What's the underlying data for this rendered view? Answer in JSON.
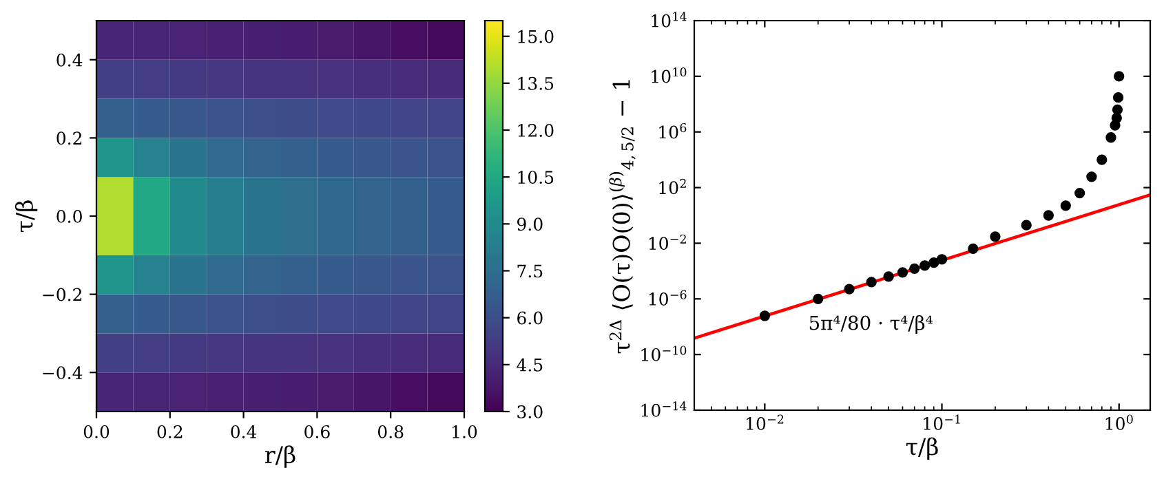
{
  "chart_data": [
    {
      "type": "heatmap",
      "xlabel": "r/β",
      "ylabel": "τ/β",
      "x": [
        0.05,
        0.15,
        0.25,
        0.35,
        0.45,
        0.55,
        0.65,
        0.75,
        0.85,
        0.95
      ],
      "y": [
        0.45,
        0.35,
        0.25,
        0.15,
        0.05,
        -0.05,
        -0.15,
        -0.25,
        -0.35,
        -0.45
      ],
      "cells": [
        [
          4.3,
          4.25,
          4.2,
          4.15,
          4.1,
          4.0,
          3.9,
          3.7,
          3.4,
          3.3
        ],
        [
          5.3,
          5.2,
          5.1,
          5.0,
          4.95,
          4.9,
          4.8,
          4.7,
          4.6,
          4.5
        ],
        [
          6.8,
          6.6,
          6.4,
          6.2,
          6.0,
          5.9,
          5.8,
          5.7,
          5.6,
          5.5
        ],
        [
          9.5,
          8.5,
          7.8,
          7.3,
          7.0,
          6.8,
          6.6,
          6.4,
          6.3,
          6.2
        ],
        [
          14,
          10.5,
          9,
          8.3,
          7.8,
          7.5,
          7.2,
          7.0,
          6.8,
          6.6
        ],
        [
          14,
          10.5,
          9,
          8.3,
          7.8,
          7.5,
          7.2,
          7.0,
          6.8,
          6.6
        ],
        [
          9.5,
          8.5,
          7.8,
          7.3,
          7.0,
          6.8,
          6.6,
          6.4,
          6.3,
          6.2
        ],
        [
          6.8,
          6.6,
          6.4,
          6.2,
          6.0,
          5.9,
          5.8,
          5.7,
          5.6,
          5.5
        ],
        [
          5.3,
          5.2,
          5.1,
          5.0,
          4.95,
          4.9,
          4.8,
          4.7,
          4.6,
          4.5
        ],
        [
          4.3,
          4.25,
          4.2,
          4.15,
          4.1,
          4.0,
          3.9,
          3.7,
          3.4,
          3.3
        ]
      ],
      "xlim": [
        0,
        1
      ],
      "ylim": [
        -0.5,
        0.5
      ],
      "xticks": [
        {
          "value": 0,
          "label": "0.0"
        },
        {
          "value": 0.2,
          "label": "0.2"
        },
        {
          "value": 0.4,
          "label": "0.4"
        },
        {
          "value": 0.6,
          "label": "0.6"
        },
        {
          "value": 0.8,
          "label": "0.8"
        },
        {
          "value": 1,
          "label": "1.0"
        }
      ],
      "yticks": [
        {
          "value": -0.4,
          "label": "−0.4"
        },
        {
          "value": -0.2,
          "label": "−0.2"
        },
        {
          "value": 0,
          "label": "0.0"
        },
        {
          "value": 0.2,
          "label": "0.2"
        },
        {
          "value": 0.4,
          "label": "0.4"
        }
      ],
      "clim": [
        3,
        15.5
      ],
      "cticks": [
        {
          "value": 3,
          "label": "3.0"
        },
        {
          "value": 4.5,
          "label": "4.5"
        },
        {
          "value": 6,
          "label": "6.0"
        },
        {
          "value": 7.5,
          "label": "7.5"
        },
        {
          "value": 9,
          "label": "9.0"
        },
        {
          "value": 10.5,
          "label": "10.5"
        },
        {
          "value": 12,
          "label": "12.0"
        },
        {
          "value": 13.5,
          "label": "13.5"
        },
        {
          "value": 15,
          "label": "15.0"
        }
      ]
    },
    {
      "type": "scatter",
      "log": "xy",
      "xlabel": "τ/β",
      "ylabel": "τ$^{2Δ}$ ⟨O(τ)O(0)⟩$^{(β)}$$_{4,5/2}$ − 1",
      "series": [
        {
          "type": "scatter",
          "marker": "circle",
          "color": "#000000",
          "x": [
            0.01,
            0.02,
            0.03,
            0.04,
            0.05,
            0.06,
            0.07,
            0.08,
            0.09,
            0.1,
            0.15,
            0.2,
            0.3,
            0.4,
            0.5,
            0.6,
            0.7,
            0.8,
            0.9,
            0.95,
            0.97,
            0.98,
            0.99,
            1.0
          ],
          "values": [
            6e-08,
            1e-06,
            5e-06,
            1.6e-05,
            4e-05,
            8e-05,
            0.00015,
            0.00025,
            0.0004,
            0.0007,
            0.004,
            0.03,
            0.2,
            1,
            5,
            40,
            600,
            10000.0,
            400000.0,
            3000000.0,
            10000000.0,
            40000000.0,
            300000000.0,
            10000000000.0
          ]
        },
        {
          "type": "line",
          "color": "#ff0000",
          "x": [
            0.004,
            1.5
          ],
          "values": [
            1.5e-09,
            30
          ]
        }
      ],
      "annotations": [
        "5π⁴/80 · τ⁴/β⁴"
      ],
      "xlim": [
        0.004,
        1.5
      ],
      "ylim": [
        1e-14,
        100000000000000.0
      ],
      "xticks": [
        {
          "value": 0.01,
          "label": "10$^{−2}$"
        },
        {
          "value": 0.1,
          "label": "10$^{−1}$"
        },
        {
          "value": 1,
          "label": "10$^{0}$"
        }
      ],
      "yticks": [
        {
          "value": 1e-14,
          "label": "10$^{−14}$"
        },
        {
          "value": 1e-10,
          "label": "10$^{−10}$"
        },
        {
          "value": 1e-06,
          "label": "10$^{−6}$"
        },
        {
          "value": 0.01,
          "label": "10$^{−2}$"
        },
        {
          "value": 100,
          "label": "10$^{2}$"
        },
        {
          "value": 1000000.0,
          "label": "10$^{6}$"
        },
        {
          "value": 10000000000.0,
          "label": "10$^{10}$"
        },
        {
          "value": 100000000000000.0,
          "label": "10$^{14}$"
        }
      ]
    }
  ]
}
